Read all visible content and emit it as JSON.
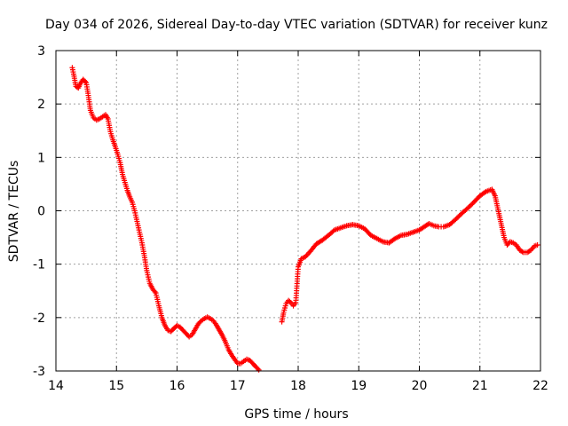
{
  "chart_data": {
    "type": "scatter",
    "title": "Day 034 of 2026, Sidereal Day-to-day VTEC variation (SDTVAR) for receiver kunz",
    "xlabel": "GPS time / hours",
    "ylabel": "SDTVAR / TECUs",
    "xlim": [
      14,
      22
    ],
    "ylim": [
      -3,
      3
    ],
    "x_ticks": [
      14,
      15,
      16,
      17,
      18,
      19,
      20,
      21,
      22
    ],
    "y_ticks": [
      -3,
      -2,
      -1,
      0,
      1,
      2,
      3
    ],
    "grid": true,
    "marker": "+",
    "series": [
      {
        "name": "SDTVAR",
        "color": "#ff0000",
        "segments": [
          [
            [
              14.27,
              2.68
            ],
            [
              14.3,
              2.52
            ],
            [
              14.33,
              2.33
            ],
            [
              14.37,
              2.3
            ],
            [
              14.4,
              2.38
            ],
            [
              14.45,
              2.46
            ],
            [
              14.5,
              2.4
            ],
            [
              14.53,
              2.2
            ],
            [
              14.57,
              1.88
            ],
            [
              14.62,
              1.74
            ],
            [
              14.67,
              1.7
            ],
            [
              14.72,
              1.72
            ],
            [
              14.77,
              1.76
            ],
            [
              14.82,
              1.8
            ],
            [
              14.86,
              1.72
            ],
            [
              14.9,
              1.48
            ],
            [
              14.94,
              1.33
            ],
            [
              14.98,
              1.2
            ],
            [
              15.02,
              1.06
            ],
            [
              15.06,
              0.9
            ],
            [
              15.1,
              0.68
            ],
            [
              15.14,
              0.53
            ],
            [
              15.18,
              0.38
            ],
            [
              15.22,
              0.26
            ],
            [
              15.26,
              0.16
            ],
            [
              15.3,
              0.0
            ],
            [
              15.34,
              -0.2
            ],
            [
              15.38,
              -0.4
            ],
            [
              15.42,
              -0.6
            ],
            [
              15.46,
              -0.84
            ],
            [
              15.5,
              -1.12
            ],
            [
              15.55,
              -1.36
            ],
            [
              15.6,
              -1.47
            ],
            [
              15.65,
              -1.54
            ],
            [
              15.7,
              -1.78
            ],
            [
              15.75,
              -2.0
            ],
            [
              15.8,
              -2.15
            ],
            [
              15.85,
              -2.24
            ],
            [
              15.9,
              -2.26
            ],
            [
              15.95,
              -2.2
            ],
            [
              16.0,
              -2.15
            ],
            [
              16.05,
              -2.18
            ],
            [
              16.1,
              -2.24
            ],
            [
              16.15,
              -2.3
            ],
            [
              16.2,
              -2.36
            ],
            [
              16.25,
              -2.32
            ],
            [
              16.3,
              -2.22
            ],
            [
              16.35,
              -2.12
            ],
            [
              16.4,
              -2.06
            ],
            [
              16.45,
              -2.02
            ],
            [
              16.5,
              -1.99
            ],
            [
              16.55,
              -2.02
            ],
            [
              16.6,
              -2.06
            ],
            [
              16.65,
              -2.14
            ],
            [
              16.7,
              -2.24
            ],
            [
              16.75,
              -2.34
            ],
            [
              16.8,
              -2.46
            ],
            [
              16.85,
              -2.6
            ],
            [
              16.9,
              -2.7
            ],
            [
              16.95,
              -2.78
            ],
            [
              17.0,
              -2.86
            ],
            [
              17.05,
              -2.86
            ],
            [
              17.1,
              -2.82
            ],
            [
              17.15,
              -2.78
            ],
            [
              17.2,
              -2.8
            ],
            [
              17.25,
              -2.86
            ],
            [
              17.3,
              -2.92
            ],
            [
              17.35,
              -2.98
            ]
          ],
          [
            [
              17.73,
              -2.08
            ],
            [
              17.76,
              -1.9
            ],
            [
              17.8,
              -1.74
            ],
            [
              17.84,
              -1.68
            ],
            [
              17.88,
              -1.72
            ],
            [
              17.92,
              -1.78
            ],
            [
              17.96,
              -1.72
            ],
            [
              18.0,
              -1.05
            ],
            [
              18.05,
              -0.9
            ],
            [
              18.12,
              -0.86
            ],
            [
              18.2,
              -0.76
            ],
            [
              18.3,
              -0.62
            ],
            [
              18.4,
              -0.55
            ],
            [
              18.5,
              -0.46
            ],
            [
              18.6,
              -0.36
            ],
            [
              18.7,
              -0.32
            ],
            [
              18.8,
              -0.28
            ],
            [
              18.9,
              -0.26
            ],
            [
              19.0,
              -0.28
            ],
            [
              19.1,
              -0.34
            ],
            [
              19.2,
              -0.46
            ],
            [
              19.3,
              -0.52
            ],
            [
              19.4,
              -0.58
            ],
            [
              19.5,
              -0.6
            ],
            [
              19.6,
              -0.52
            ],
            [
              19.7,
              -0.46
            ],
            [
              19.8,
              -0.44
            ],
            [
              19.9,
              -0.4
            ],
            [
              20.0,
              -0.36
            ],
            [
              20.08,
              -0.3
            ],
            [
              20.16,
              -0.24
            ],
            [
              20.24,
              -0.28
            ],
            [
              20.32,
              -0.3
            ],
            [
              20.4,
              -0.3
            ],
            [
              20.5,
              -0.26
            ],
            [
              20.6,
              -0.16
            ],
            [
              20.7,
              -0.05
            ],
            [
              20.8,
              0.05
            ],
            [
              20.9,
              0.16
            ],
            [
              21.0,
              0.28
            ],
            [
              21.1,
              0.36
            ],
            [
              21.2,
              0.4
            ],
            [
              21.25,
              0.28
            ],
            [
              21.3,
              0.02
            ],
            [
              21.35,
              -0.24
            ],
            [
              21.4,
              -0.5
            ],
            [
              21.45,
              -0.64
            ],
            [
              21.5,
              -0.58
            ],
            [
              21.55,
              -0.6
            ],
            [
              21.6,
              -0.64
            ],
            [
              21.66,
              -0.74
            ],
            [
              21.72,
              -0.78
            ],
            [
              21.78,
              -0.78
            ],
            [
              21.84,
              -0.74
            ],
            [
              21.9,
              -0.66
            ],
            [
              21.95,
              -0.64
            ]
          ]
        ]
      }
    ]
  }
}
